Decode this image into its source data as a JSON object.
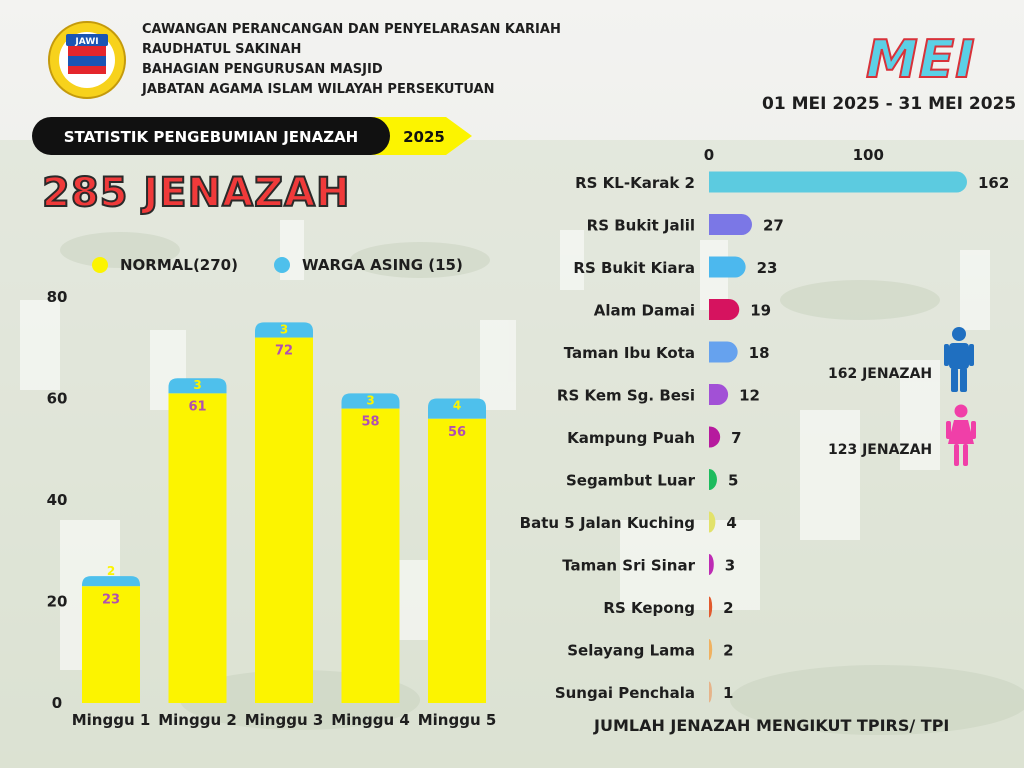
{
  "header": {
    "logo_text": "JAWI",
    "org_lines": [
      "CAWANGAN PERANCANGAN DAN PENYELARASAN KARIAH",
      "RAUDHATUL SAKINAH",
      "BAHAGIAN PENGURUSAN MASJID",
      "JABATAN AGAMA ISLAM WILAYAH PERSEKUTUAN"
    ],
    "month": "MEI",
    "period": "01 MEI 2025 - 31 MEI 2025"
  },
  "banner": {
    "title": "STATISTIK PENGEBUMIAN JENAZAH",
    "year": "2025"
  },
  "total_label": "285 JENAZAH",
  "gender": {
    "male_label": "162 JENAZAH",
    "female_label": "123 JENAZAH",
    "male_color": "#1f6fc0",
    "female_color": "#f03fa8"
  },
  "footer": "JUMLAH JENAZAH MENGIKUT TPIRS/ TPI",
  "colors": {
    "normal": "#fcf400",
    "asing": "#4ec0ec",
    "value_label": "#b050b0",
    "banner_bg": "#111111",
    "banner_accent": "#fcf400"
  },
  "chart_data": [
    {
      "type": "bar",
      "stacked": true,
      "categories": [
        "Minggu 1",
        "Minggu 2",
        "Minggu 3",
        "Minggu 4",
        "Minggu 5"
      ],
      "series": [
        {
          "name": "NORMAL(270)",
          "values": [
            23,
            61,
            72,
            58,
            56
          ]
        },
        {
          "name": "WARGA ASING (15)",
          "values": [
            2,
            3,
            3,
            3,
            4
          ]
        }
      ],
      "yticks": [
        0,
        20,
        40,
        60,
        80
      ],
      "ylim": [
        0,
        80
      ],
      "legend": "top",
      "grid": false
    },
    {
      "type": "bar",
      "orientation": "horizontal",
      "categories": [
        "RS KL-Karak 2",
        "RS Bukit Jalil",
        "RS Bukit Kiara",
        "Alam Damai",
        "Taman Ibu Kota",
        "RS Kem Sg. Besi",
        "Kampung Puah",
        "Segambut Luar",
        "Batu 5 Jalan Kuching",
        "Taman Sri Sinar",
        "RS Kepong",
        "Selayang Lama",
        "Sungai Penchala"
      ],
      "values": [
        162,
        27,
        23,
        19,
        18,
        12,
        7,
        5,
        4,
        3,
        2,
        2,
        1
      ],
      "colors": [
        "#5ccbe0",
        "#7b77e6",
        "#4cb8ee",
        "#d6135f",
        "#66a2ee",
        "#a250d6",
        "#b61a9e",
        "#1dbb5d",
        "#e2e26a",
        "#bd2bb4",
        "#e25a2e",
        "#f0b160",
        "#e6b48a"
      ],
      "xticks": [
        0,
        100
      ],
      "xlim": [
        0,
        162
      ],
      "title": "JUMLAH JENAZAH MENGIKUT TPIRS/ TPI"
    }
  ]
}
